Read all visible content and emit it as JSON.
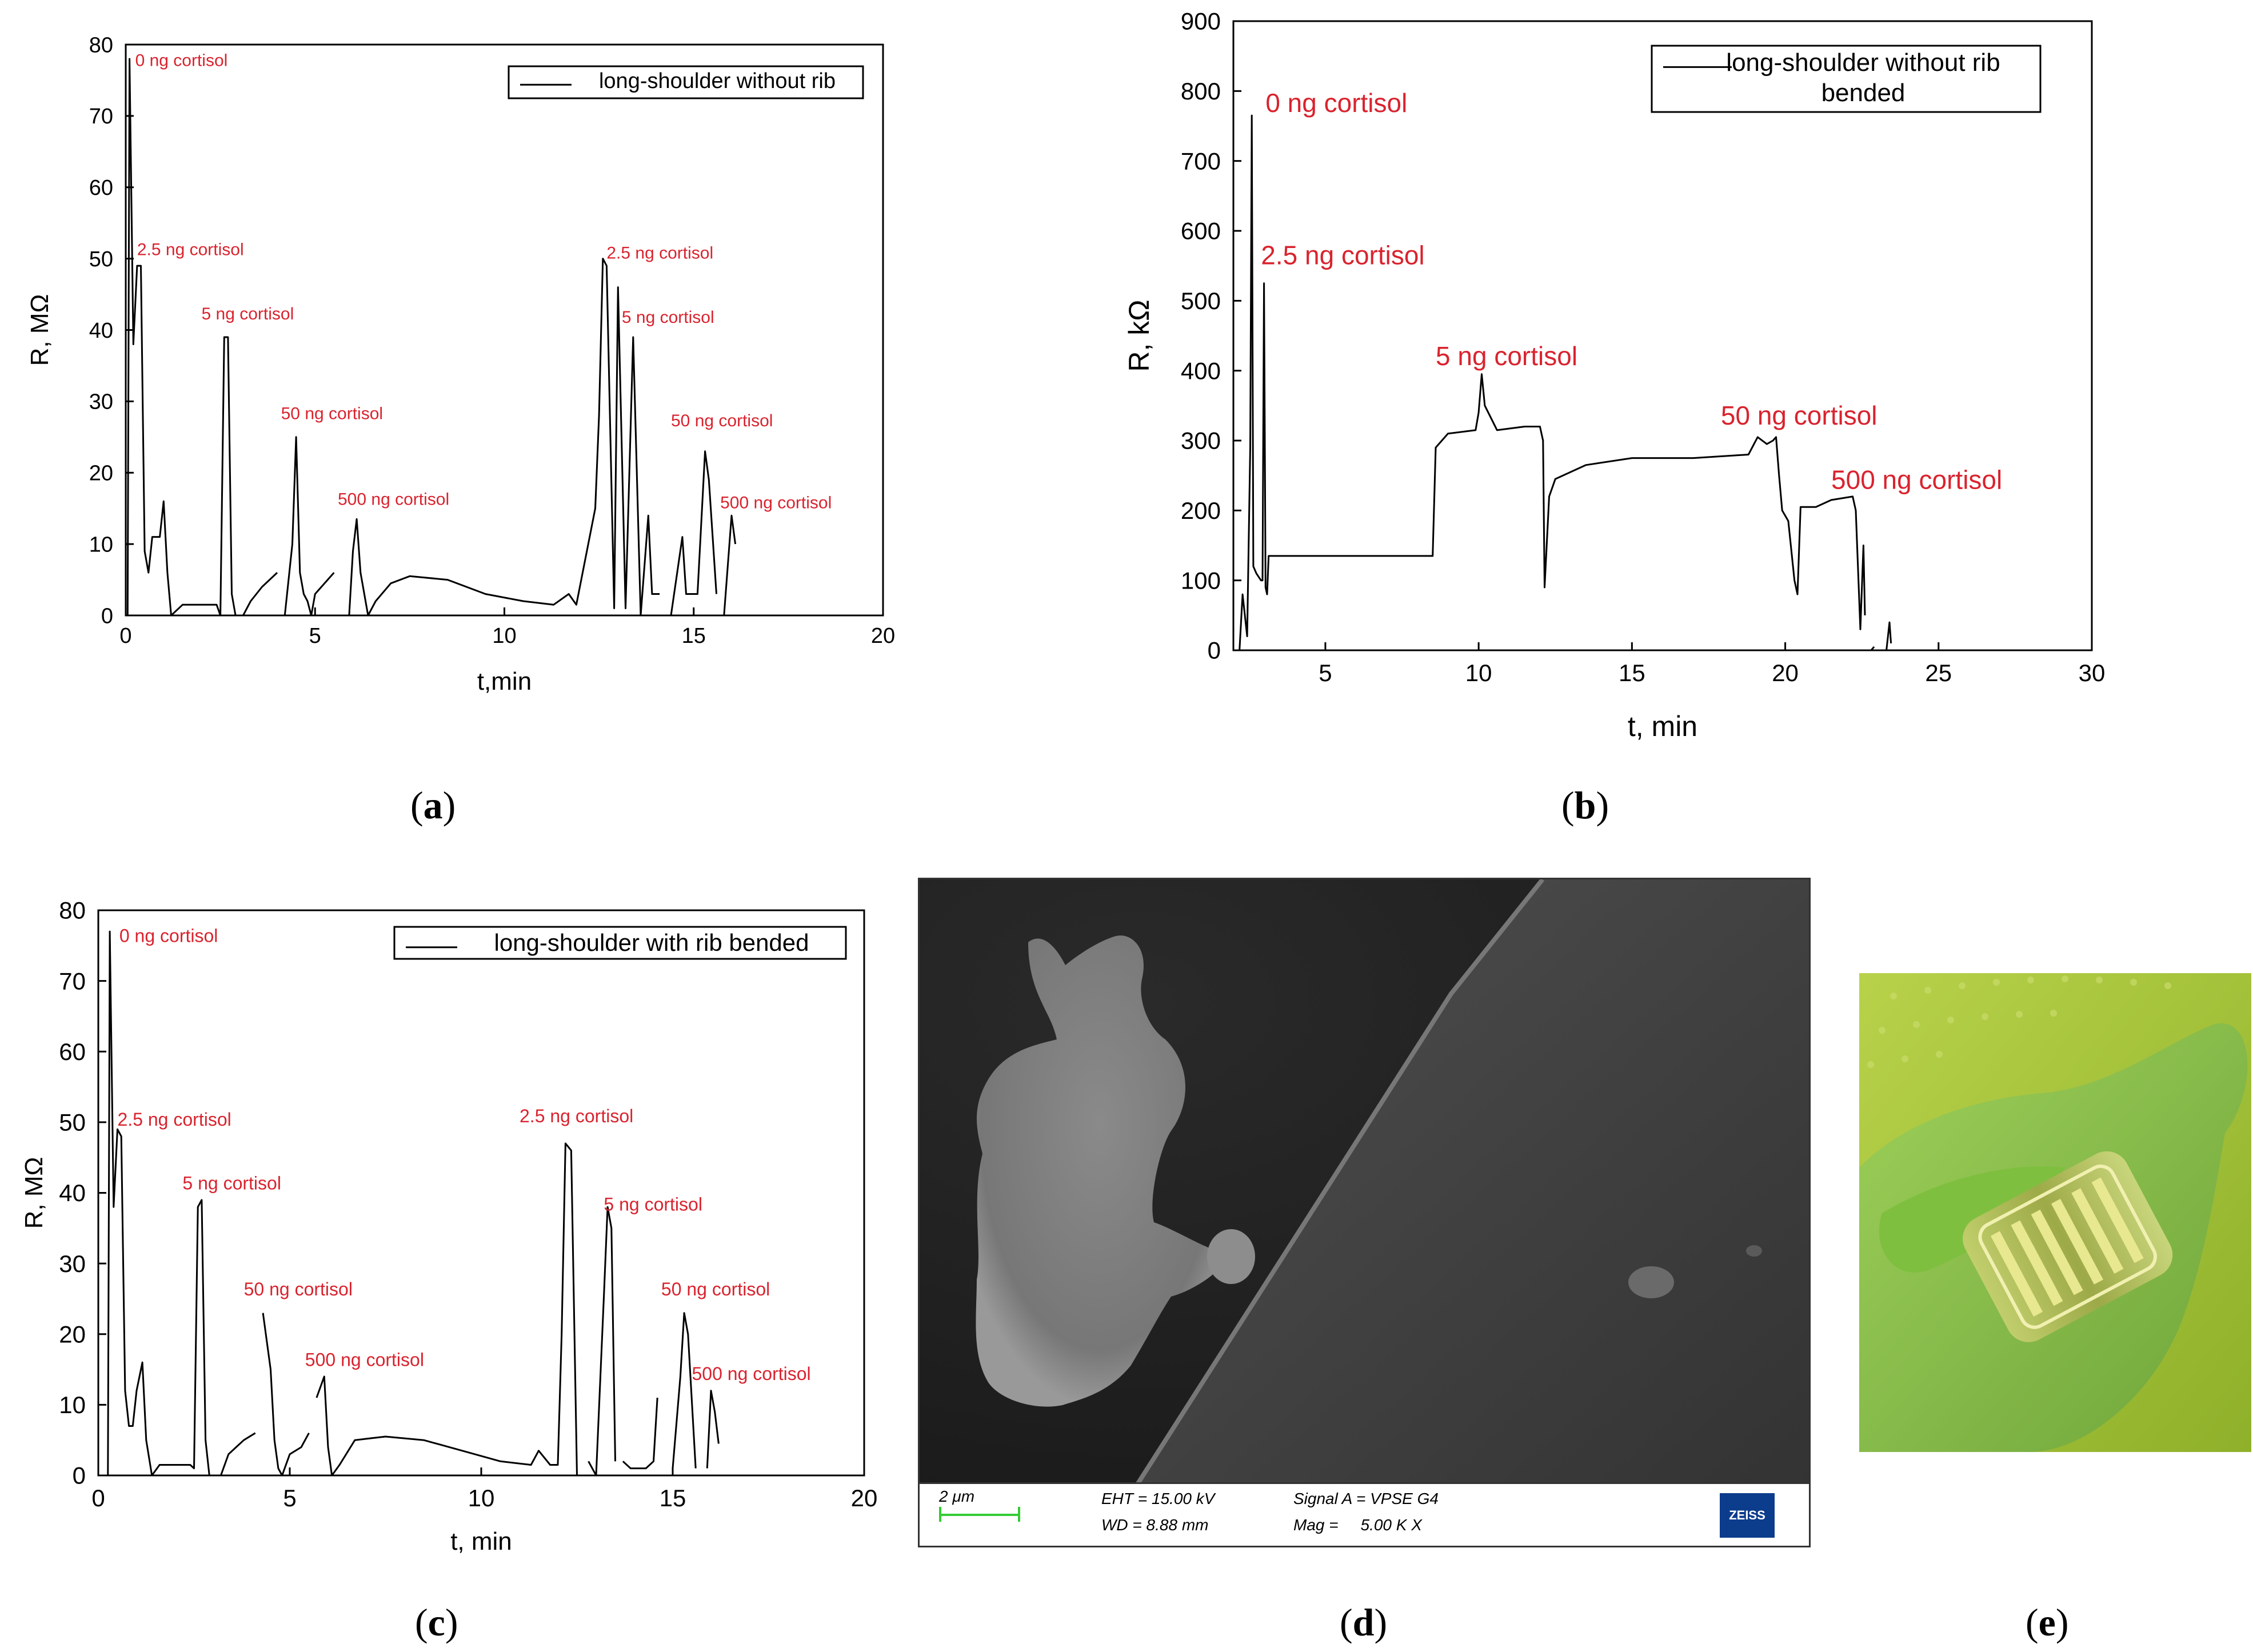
{
  "chart_data": [
    {
      "id": "a",
      "type": "line",
      "title": "",
      "xlabel": "t,min",
      "ylabel": "R, MΩ",
      "xlim": [
        0,
        20
      ],
      "ylim": [
        0,
        80
      ],
      "xticks": [
        0,
        5,
        10,
        15,
        20
      ],
      "yticks": [
        0,
        10,
        20,
        30,
        40,
        50,
        60,
        70,
        80
      ],
      "legend": {
        "label": "long-shoulder without rib",
        "position": "top-right"
      },
      "annotation_color": "#d9232e",
      "series": [
        {
          "name": "long-shoulder without rib",
          "segments": [
            [
              [
                0.05,
                0
              ],
              [
                0.1,
                78
              ],
              [
                0.2,
                38
              ],
              [
                0.3,
                49
              ],
              [
                0.4,
                49
              ],
              [
                0.5,
                9
              ],
              [
                0.6,
                6
              ],
              [
                0.7,
                11
              ],
              [
                0.9,
                11
              ],
              [
                1.0,
                16
              ],
              [
                1.1,
                6
              ],
              [
                1.2,
                0
              ],
              [
                1.5,
                1.5
              ],
              [
                2.4,
                1.5
              ],
              [
                2.5,
                0
              ],
              [
                2.6,
                39
              ],
              [
                2.7,
                39
              ],
              [
                2.8,
                3
              ],
              [
                2.9,
                0
              ]
            ],
            [
              [
                3.1,
                0
              ],
              [
                3.3,
                2
              ],
              [
                3.6,
                4
              ],
              [
                4.0,
                6
              ]
            ],
            [
              [
                4.2,
                0
              ],
              [
                4.4,
                10
              ],
              [
                4.5,
                25
              ],
              [
                4.6,
                6
              ],
              [
                4.7,
                3
              ],
              [
                4.8,
                2
              ],
              [
                4.9,
                0
              ],
              [
                5.0,
                3
              ],
              [
                5.5,
                6
              ]
            ],
            [
              [
                5.9,
                0
              ],
              [
                6.0,
                9
              ],
              [
                6.1,
                13.5
              ],
              [
                6.2,
                6
              ],
              [
                6.4,
                0
              ],
              [
                6.6,
                2
              ],
              [
                7.0,
                4.5
              ],
              [
                7.5,
                5.5
              ],
              [
                8.5,
                5
              ],
              [
                9.5,
                3
              ],
              [
                10.5,
                2
              ],
              [
                11.3,
                1.5
              ],
              [
                11.7,
                3
              ],
              [
                11.9,
                1.5
              ],
              [
                12.4,
                15
              ],
              [
                12.5,
                28
              ],
              [
                12.6,
                50
              ],
              [
                12.7,
                49
              ],
              [
                12.9,
                1
              ],
              [
                13.0,
                46
              ],
              [
                13.2,
                1
              ],
              [
                13.4,
                39
              ],
              [
                13.6,
                0
              ]
            ],
            [
              [
                13.6,
                0
              ],
              [
                13.8,
                14
              ],
              [
                13.9,
                3
              ],
              [
                14.1,
                3
              ]
            ],
            [
              [
                14.4,
                0
              ],
              [
                14.7,
                11
              ],
              [
                14.8,
                3
              ],
              [
                15.1,
                3
              ],
              [
                15.3,
                23
              ],
              [
                15.4,
                19
              ],
              [
                15.6,
                3
              ]
            ],
            [
              [
                15.8,
                0
              ],
              [
                16.0,
                14
              ],
              [
                16.1,
                10
              ]
            ]
          ]
        }
      ],
      "annotations": [
        {
          "text": "0 ng cortisol",
          "x": 0.25,
          "y": 77
        },
        {
          "text": "2.5 ng cortisol",
          "x": 0.3,
          "y": 50.5
        },
        {
          "text": "5 ng cortisol",
          "x": 2.0,
          "y": 41.5
        },
        {
          "text": "50 ng cortisol",
          "x": 4.1,
          "y": 27.5
        },
        {
          "text": "500 ng cortisol",
          "x": 5.6,
          "y": 15.5
        },
        {
          "text": "2.5 ng cortisol",
          "x": 12.7,
          "y": 50
        },
        {
          "text": "5 ng cortisol",
          "x": 13.1,
          "y": 41
        },
        {
          "text": "50 ng cortisol",
          "x": 14.4,
          "y": 26.5
        },
        {
          "text": "500 ng cortisol",
          "x": 15.7,
          "y": 15
        }
      ]
    },
    {
      "id": "b",
      "type": "line",
      "title": "",
      "xlabel": "t, min",
      "ylabel": "R, kΩ",
      "xlim": [
        2,
        30
      ],
      "ylim": [
        0,
        900
      ],
      "xticks": [
        5,
        10,
        15,
        20,
        25,
        30
      ],
      "yticks": [
        0,
        100,
        200,
        300,
        400,
        500,
        600,
        700,
        800,
        900
      ],
      "legend": {
        "label": "long-shoulder without rib\nbended",
        "position": "top-right"
      },
      "annotation_color": "#d9232e",
      "series": [
        {
          "name": "long-shoulder without rib bended",
          "segments": [
            [
              [
                2.2,
                0
              ],
              [
                2.3,
                80
              ],
              [
                2.45,
                20
              ],
              [
                2.55,
                290
              ],
              [
                2.6,
                765
              ],
              [
                2.65,
                120
              ],
              [
                2.75,
                110
              ],
              [
                2.9,
                100
              ],
              [
                2.95,
                100
              ],
              [
                3.0,
                525
              ],
              [
                3.05,
                90
              ],
              [
                3.1,
                80
              ],
              [
                3.15,
                135
              ],
              [
                3.3,
                135
              ],
              [
                8.5,
                135
              ],
              [
                8.6,
                290
              ],
              [
                9.0,
                310
              ],
              [
                9.9,
                315
              ],
              [
                10.0,
                340
              ],
              [
                10.1,
                395
              ],
              [
                10.2,
                350
              ],
              [
                10.6,
                315
              ],
              [
                11.5,
                320
              ],
              [
                12.0,
                320
              ],
              [
                12.1,
                300
              ],
              [
                12.15,
                90
              ],
              [
                12.3,
                220
              ],
              [
                12.5,
                245
              ],
              [
                13.5,
                265
              ],
              [
                15.0,
                275
              ],
              [
                17.0,
                275
              ],
              [
                18.8,
                280
              ],
              [
                19.1,
                305
              ],
              [
                19.4,
                295
              ],
              [
                19.6,
                300
              ],
              [
                19.7,
                305
              ],
              [
                19.8,
                250
              ],
              [
                19.9,
                200
              ],
              [
                20.1,
                185
              ],
              [
                20.3,
                100
              ],
              [
                20.4,
                80
              ],
              [
                20.5,
                205
              ],
              [
                21.0,
                205
              ],
              [
                21.5,
                215
              ],
              [
                22.2,
                220
              ],
              [
                22.3,
                200
              ],
              [
                22.45,
                30
              ],
              [
                22.55,
                150
              ],
              [
                22.6,
                50
              ]
            ],
            [
              [
                22.8,
                0
              ],
              [
                22.9,
                5
              ]
            ],
            [
              [
                23.3,
                0
              ],
              [
                23.4,
                40
              ],
              [
                23.45,
                10
              ]
            ]
          ]
        }
      ],
      "annotations": [
        {
          "text": "0 ng cortisol",
          "x": 3.05,
          "y": 770
        },
        {
          "text": "2.5 ng cortisol",
          "x": 2.9,
          "y": 552
        },
        {
          "text": "5 ng cortisol",
          "x": 8.6,
          "y": 408
        },
        {
          "text": "50 ng cortisol",
          "x": 17.9,
          "y": 323
        },
        {
          "text": "500 ng cortisol",
          "x": 21.5,
          "y": 231
        }
      ]
    },
    {
      "id": "c",
      "type": "line",
      "title": "",
      "xlabel": "t, min",
      "ylabel": "R, MΩ",
      "xlim": [
        0,
        20
      ],
      "ylim": [
        0,
        80
      ],
      "xticks": [
        0,
        5,
        10,
        15,
        20
      ],
      "yticks": [
        0,
        10,
        20,
        30,
        40,
        50,
        60,
        70,
        80
      ],
      "legend": {
        "label": "long-shoulder with rib bended",
        "position": "top-right"
      },
      "annotation_color": "#d9232e",
      "series": [
        {
          "name": "long-shoulder with rib bended",
          "segments": [
            [
              [
                0.25,
                0
              ],
              [
                0.3,
                77
              ],
              [
                0.4,
                38
              ],
              [
                0.5,
                49
              ],
              [
                0.6,
                48
              ],
              [
                0.7,
                12
              ],
              [
                0.8,
                7
              ],
              [
                0.9,
                7
              ],
              [
                1.0,
                12
              ],
              [
                1.15,
                16
              ],
              [
                1.25,
                5
              ],
              [
                1.4,
                0
              ],
              [
                1.6,
                1.5
              ],
              [
                2.4,
                1.5
              ],
              [
                2.5,
                1
              ],
              [
                2.6,
                38
              ],
              [
                2.7,
                39
              ],
              [
                2.8,
                5
              ],
              [
                2.9,
                0
              ]
            ],
            [
              [
                3.2,
                0
              ],
              [
                3.4,
                3
              ],
              [
                3.6,
                4
              ],
              [
                3.8,
                5
              ],
              [
                4.1,
                6
              ]
            ],
            [
              [
                4.3,
                23
              ],
              [
                4.5,
                15
              ],
              [
                4.6,
                5
              ],
              [
                4.7,
                1
              ],
              [
                4.8,
                0
              ],
              [
                5.0,
                3
              ],
              [
                5.3,
                4
              ],
              [
                5.5,
                6
              ]
            ],
            [
              [
                5.7,
                11
              ],
              [
                5.9,
                14
              ],
              [
                6.0,
                4
              ],
              [
                6.1,
                0
              ],
              [
                6.3,
                1.5
              ],
              [
                6.7,
                5
              ],
              [
                7.5,
                5.5
              ],
              [
                8.5,
                5
              ],
              [
                9.5,
                3.5
              ],
              [
                10.5,
                2
              ],
              [
                11.3,
                1.5
              ],
              [
                11.5,
                3.5
              ],
              [
                11.8,
                1.5
              ],
              [
                12.0,
                1.5
              ],
              [
                12.1,
                20
              ],
              [
                12.2,
                47
              ],
              [
                12.35,
                46
              ],
              [
                12.5,
                0
              ]
            ],
            [
              [
                12.8,
                2
              ],
              [
                13.0,
                0
              ],
              [
                13.2,
                25
              ],
              [
                13.3,
                38
              ],
              [
                13.4,
                35
              ],
              [
                13.5,
                2
              ]
            ],
            [
              [
                13.7,
                2
              ],
              [
                13.9,
                1
              ],
              [
                14.3,
                1
              ],
              [
                14.5,
                2
              ],
              [
                14.6,
                11
              ]
            ],
            [
              [
                15.0,
                1
              ],
              [
                15.2,
                14
              ],
              [
                15.3,
                23
              ],
              [
                15.4,
                20
              ],
              [
                15.6,
                1
              ]
            ],
            [
              [
                15.9,
                1
              ],
              [
                16.0,
                12
              ],
              [
                16.1,
                9
              ],
              [
                16.2,
                4.5
              ]
            ]
          ]
        }
      ],
      "annotations": [
        {
          "text": "0 ng cortisol",
          "x": 0.55,
          "y": 75.5
        },
        {
          "text": "2.5 ng cortisol",
          "x": 0.5,
          "y": 49.5
        },
        {
          "text": "5 ng cortisol",
          "x": 2.2,
          "y": 40.5
        },
        {
          "text": "50 ng cortisol",
          "x": 3.8,
          "y": 25.5
        },
        {
          "text": "500 ng cortisol",
          "x": 5.4,
          "y": 15.5
        },
        {
          "text": "2.5 ng cortisol",
          "x": 11.0,
          "y": 50
        },
        {
          "text": "5 ng cortisol",
          "x": 13.2,
          "y": 37.5
        },
        {
          "text": "50 ng cortisol",
          "x": 14.7,
          "y": 25.5
        },
        {
          "text": "500 ng cortisol",
          "x": 15.5,
          "y": 13.5
        }
      ]
    }
  ],
  "captions": {
    "a": "a",
    "b": "b",
    "c": "c",
    "d": "d",
    "e": "e"
  },
  "sem": {
    "scale_label": "2 μm",
    "eht": "EHT = 15.00 kV",
    "wd": "WD = 8.88 mm",
    "signal": "Signal A = VPSE G4",
    "mag": "Mag =     5.00 K X",
    "logo": "ZEISS",
    "scale_color": "#33cc33",
    "logo_color": "#0c3c8c"
  },
  "photo": {
    "glove_color": "#8dc63f",
    "device": "flexible sensor on gloved fingertip"
  }
}
